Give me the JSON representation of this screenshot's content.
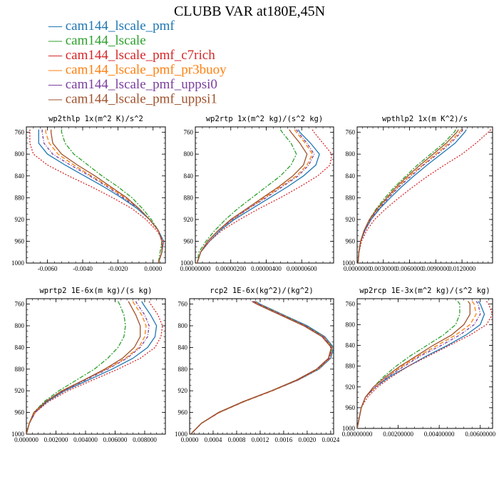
{
  "title": "CLUBB VAR at180E,45N",
  "series": [
    {
      "name": "cam144_lscale_pmf",
      "color": "#1f77b4",
      "dash": "",
      "legend_mark": "—"
    },
    {
      "name": "cam144_lscale",
      "color": "#2ca02c",
      "dash": "6 2 2 2",
      "legend_mark": "—"
    },
    {
      "name": "cam144_lscale_pmf_c7rich",
      "color": "#d62728",
      "dash": "2 2",
      "legend_mark": "—"
    },
    {
      "name": "cam144_lscale_pmf_pr3buoy",
      "color": "#ff7f0e",
      "dash": "6 3",
      "legend_mark": "—"
    },
    {
      "name": "cam144_lscale_pmf_uppsi0",
      "color": "#7b3f9e",
      "dash": "4 2 1 2",
      "legend_mark": "—"
    },
    {
      "name": "cam144_lscale_pmf_uppsi1",
      "color": "#a0522d",
      "dash": "",
      "legend_mark": "—"
    }
  ],
  "y_ticks": [
    "760",
    "800",
    "840",
    "880",
    "920",
    "960",
    "1000"
  ],
  "chart_data": [
    {
      "type": "line",
      "title": "wp2thlp  1x(m^2 K)/s^2",
      "xlim": [
        -0.0072,
        0.0007
      ],
      "ylim": [
        750,
        1000
      ],
      "y_inverted": true,
      "x_ticks": [
        -0.006,
        -0.004,
        -0.002,
        0.0
      ],
      "x_tick_labels": [
        "-0.0060",
        "-0.0040",
        "-0.0020",
        "0.0000"
      ],
      "y": [
        755,
        760,
        780,
        800,
        820,
        840,
        860,
        880,
        900,
        920,
        940,
        960,
        980,
        1000
      ],
      "series_x": [
        [
          -0.0065,
          -0.0065,
          -0.0065,
          -0.006,
          -0.005,
          -0.0039,
          -0.0028,
          -0.0018,
          -0.0009,
          -0.0002,
          0.0003,
          0.0006,
          0.0005,
          0.0003
        ],
        [
          -0.0052,
          -0.0052,
          -0.005,
          -0.0045,
          -0.0037,
          -0.0029,
          -0.002,
          -0.0012,
          -0.0006,
          -0.0001,
          0.0003,
          0.0005,
          0.0004,
          0.0003
        ],
        [
          -0.007,
          -0.007,
          -0.007,
          -0.0068,
          -0.006,
          -0.0048,
          -0.0035,
          -0.0023,
          -0.0012,
          -0.0004,
          0.0002,
          0.0006,
          0.0005,
          0.0003
        ],
        [
          -0.0061,
          -0.0061,
          -0.0059,
          -0.0054,
          -0.0045,
          -0.0035,
          -0.0025,
          -0.0016,
          -0.0008,
          -0.0002,
          0.0003,
          0.0005,
          0.0005,
          0.0003
        ],
        [
          -0.0063,
          -0.0063,
          -0.0062,
          -0.0057,
          -0.0047,
          -0.0036,
          -0.0026,
          -0.0017,
          -0.0008,
          -0.0002,
          0.0003,
          0.0005,
          0.0005,
          0.0003
        ],
        [
          -0.0058,
          -0.0058,
          -0.0057,
          -0.0052,
          -0.0043,
          -0.0033,
          -0.0024,
          -0.0015,
          -0.0008,
          -0.0002,
          0.0003,
          0.0005,
          0.0005,
          0.0003
        ]
      ]
    },
    {
      "type": "line",
      "title": "wp2rtp  1x(m^2 kg)/(s^2 kg)",
      "xlim": [
        0.0,
        7.8e-06
      ],
      "ylim": [
        750,
        1000
      ],
      "y_inverted": true,
      "x_ticks": [
        0.0,
        2e-06,
        4e-06,
        6e-06
      ],
      "x_tick_labels": [
        "0.00000000",
        "0.00000200",
        "0.00000400",
        "0.00000600"
      ],
      "y": [
        755,
        760,
        780,
        800,
        820,
        840,
        860,
        880,
        900,
        920,
        940,
        960,
        980,
        1000
      ],
      "series_x": [
        [
          5.8e-06,
          5.9e-06,
          6.5e-06,
          7e-06,
          6.8e-06,
          6.1e-06,
          5.2e-06,
          4.2e-06,
          3.2e-06,
          2.2e-06,
          1.4e-06,
          8e-07,
          3e-07,
          1e-07
        ],
        [
          4.8e-06,
          4.9e-06,
          5.4e-06,
          5.7e-06,
          5.4e-06,
          4.8e-06,
          4e-06,
          3.2e-06,
          2.4e-06,
          1.7e-06,
          1.1e-06,
          6e-07,
          2e-07,
          1e-07
        ],
        [
          6.6e-06,
          6.7e-06,
          7.2e-06,
          7.7e-06,
          7.6e-06,
          6.9e-06,
          5.9e-06,
          4.8e-06,
          3.6e-06,
          2.5e-06,
          1.5e-06,
          8e-07,
          3e-07,
          1e-07
        ],
        [
          5.6e-06,
          5.7e-06,
          6.2e-06,
          6.6e-06,
          6.3e-06,
          5.7e-06,
          4.8e-06,
          3.9e-06,
          3e-06,
          2.1e-06,
          1.3e-06,
          7e-07,
          3e-07,
          1e-07
        ],
        [
          5.7e-06,
          5.8e-06,
          6.3e-06,
          6.7e-06,
          6.4e-06,
          5.8e-06,
          4.9e-06,
          4e-06,
          3e-06,
          2.1e-06,
          1.3e-06,
          7e-07,
          3e-07,
          1e-07
        ],
        [
          5.3e-06,
          5.4e-06,
          5.9e-06,
          6.3e-06,
          6.1e-06,
          5.5e-06,
          4.7e-06,
          3.8e-06,
          2.9e-06,
          2e-06,
          1.3e-06,
          7e-07,
          3e-07,
          1e-07
        ]
      ]
    },
    {
      "type": "line",
      "title": "wpthlp2  1x(m K^2)/s",
      "xlim": [
        0.0,
        0.0155
      ],
      "ylim": [
        750,
        1000
      ],
      "y_inverted": true,
      "x_ticks": [
        0.0,
        0.003,
        0.006,
        0.009,
        0.012
      ],
      "x_tick_labels": [
        "0.0000000",
        "0.0030000",
        "0.0060000",
        "0.0090000",
        "0.0120000"
      ],
      "y": [
        755,
        760,
        780,
        800,
        820,
        840,
        860,
        880,
        900,
        920,
        940,
        960,
        980,
        1000
      ],
      "series_x": [
        [
          0.0125,
          0.0123,
          0.0112,
          0.0096,
          0.008,
          0.0065,
          0.0051,
          0.0038,
          0.0026,
          0.0016,
          0.0009,
          0.0004,
          0.0002,
          0.0001
        ],
        [
          0.0113,
          0.0111,
          0.0099,
          0.0084,
          0.0069,
          0.0056,
          0.0043,
          0.0032,
          0.0022,
          0.0014,
          0.0008,
          0.0004,
          0.0002,
          0.0001
        ],
        [
          0.0153,
          0.015,
          0.0136,
          0.012,
          0.01,
          0.0081,
          0.0064,
          0.0048,
          0.0033,
          0.002,
          0.0011,
          0.0005,
          0.0002,
          0.0001
        ],
        [
          0.0119,
          0.0117,
          0.0105,
          0.009,
          0.0075,
          0.006,
          0.0047,
          0.0035,
          0.0024,
          0.0015,
          0.0008,
          0.0004,
          0.0002,
          0.0001
        ],
        [
          0.0121,
          0.0119,
          0.0107,
          0.0092,
          0.0076,
          0.0062,
          0.0048,
          0.0036,
          0.0025,
          0.0015,
          0.0009,
          0.0004,
          0.0002,
          0.0001
        ],
        [
          0.0116,
          0.0114,
          0.0102,
          0.0087,
          0.0072,
          0.0058,
          0.0045,
          0.0034,
          0.0023,
          0.0014,
          0.0008,
          0.0004,
          0.0002,
          0.0001
        ]
      ]
    },
    {
      "type": "line",
      "title": "wprtp2  1E-6x(m kg)/(s kg)",
      "xlim": [
        0.0,
        0.0094
      ],
      "ylim": [
        750,
        1000
      ],
      "y_inverted": true,
      "x_ticks": [
        0.0,
        0.002,
        0.004,
        0.006,
        0.008
      ],
      "x_tick_labels": [
        "0.000000",
        "0.002000",
        "0.004000",
        "0.006000",
        "0.008000"
      ],
      "y": [
        755,
        760,
        780,
        800,
        820,
        840,
        860,
        880,
        900,
        920,
        940,
        960,
        980,
        1000
      ],
      "series_x": [
        [
          0.0078,
          0.0079,
          0.0084,
          0.0088,
          0.0087,
          0.0082,
          0.0072,
          0.0058,
          0.0042,
          0.0026,
          0.0014,
          0.0006,
          0.0002,
          0.0
        ],
        [
          0.0062,
          0.0063,
          0.0066,
          0.0067,
          0.0066,
          0.0062,
          0.0055,
          0.0046,
          0.0034,
          0.0022,
          0.0012,
          0.0005,
          0.0002,
          0.0
        ],
        [
          0.0083,
          0.0084,
          0.0089,
          0.0092,
          0.0091,
          0.0087,
          0.0077,
          0.0062,
          0.0045,
          0.0028,
          0.0015,
          0.0006,
          0.0002,
          0.0
        ],
        [
          0.0072,
          0.0073,
          0.0078,
          0.0081,
          0.008,
          0.0076,
          0.0067,
          0.0054,
          0.0039,
          0.0025,
          0.0013,
          0.0006,
          0.0002,
          0.0
        ],
        [
          0.0074,
          0.0075,
          0.008,
          0.0083,
          0.0082,
          0.0077,
          0.0068,
          0.0055,
          0.004,
          0.0025,
          0.0013,
          0.0006,
          0.0002,
          0.0
        ],
        [
          0.0069,
          0.007,
          0.0074,
          0.0077,
          0.0077,
          0.0073,
          0.0065,
          0.0053,
          0.0039,
          0.0024,
          0.0013,
          0.0005,
          0.0002,
          0.0
        ]
      ]
    },
    {
      "type": "line",
      "title": "rcp2  1E-6x(kg^2)/(kg^2)",
      "xlim": [
        0.0,
        0.00245
      ],
      "ylim": [
        750,
        1000
      ],
      "y_inverted": true,
      "x_ticks": [
        0.0,
        0.0004,
        0.0008,
        0.0012,
        0.0016,
        0.002,
        0.0024
      ],
      "x_tick_labels": [
        "0.0000",
        "0.0004",
        "0.0008",
        "0.0012",
        "0.0016",
        "0.0020",
        "0.0024"
      ],
      "y": [
        755,
        760,
        780,
        800,
        820,
        840,
        860,
        880,
        900,
        920,
        940,
        960,
        980,
        1000
      ],
      "series_x": [
        [
          0.00112,
          0.0012,
          0.0016,
          0.002,
          0.0023,
          0.00245,
          0.0024,
          0.0022,
          0.00185,
          0.0014,
          0.00092,
          0.0005,
          0.0002,
          2e-05
        ],
        [
          0.0011,
          0.00118,
          0.00158,
          0.00198,
          0.00228,
          0.00243,
          0.00238,
          0.00218,
          0.00184,
          0.0014,
          0.00092,
          0.0005,
          0.0002,
          2e-05
        ],
        [
          0.00108,
          0.00116,
          0.00156,
          0.00196,
          0.00227,
          0.00242,
          0.00237,
          0.00217,
          0.00183,
          0.00139,
          0.00091,
          0.0005,
          0.0002,
          2e-05
        ],
        [
          0.0011,
          0.00118,
          0.00158,
          0.00197,
          0.00228,
          0.00243,
          0.00239,
          0.00219,
          0.00185,
          0.00141,
          0.00093,
          0.00051,
          0.0002,
          2e-05
        ],
        [
          0.00109,
          0.00117,
          0.00157,
          0.00197,
          0.00227,
          0.00242,
          0.00238,
          0.00218,
          0.00184,
          0.0014,
          0.00092,
          0.0005,
          0.0002,
          2e-05
        ],
        [
          0.00106,
          0.00114,
          0.00154,
          0.00194,
          0.00225,
          0.00241,
          0.00236,
          0.00216,
          0.00182,
          0.00139,
          0.00091,
          0.00049,
          0.0002,
          2e-05
        ]
      ]
    },
    {
      "type": "line",
      "title": "wp2rcp  1E-3x(m^2 kg)/(s^2 kg)",
      "xlim": [
        0.0,
        0.0066
      ],
      "ylim": [
        750,
        1000
      ],
      "y_inverted": true,
      "x_ticks": [
        0.0,
        0.002,
        0.004,
        0.006
      ],
      "x_tick_labels": [
        "0.00000000",
        "0.00200000",
        "0.00400000",
        "0.00600000"
      ],
      "y": [
        755,
        760,
        780,
        800,
        820,
        840,
        860,
        880,
        900,
        920,
        940,
        960,
        980,
        1000
      ],
      "series_x": [
        [
          0.0059,
          0.006,
          0.0062,
          0.006,
          0.0053,
          0.0044,
          0.0034,
          0.0025,
          0.0016,
          0.0009,
          0.0004,
          0.0002,
          0.0001,
          0.0
        ],
        [
          0.0049,
          0.005,
          0.005,
          0.0048,
          0.0042,
          0.0034,
          0.0026,
          0.0019,
          0.0013,
          0.0008,
          0.0004,
          0.0002,
          0.0001,
          0.0
        ],
        [
          0.0063,
          0.0064,
          0.0066,
          0.0063,
          0.0055,
          0.0045,
          0.0035,
          0.0025,
          0.0017,
          0.001,
          0.0005,
          0.0002,
          0.0001,
          0.0
        ],
        [
          0.0056,
          0.0057,
          0.0058,
          0.0055,
          0.0048,
          0.0039,
          0.003,
          0.0022,
          0.0015,
          0.0009,
          0.0004,
          0.0002,
          0.0001,
          0.0
        ],
        [
          0.0058,
          0.0059,
          0.006,
          0.0057,
          0.005,
          0.0041,
          0.0031,
          0.0023,
          0.0015,
          0.0009,
          0.0004,
          0.0002,
          0.0001,
          0.0
        ],
        [
          0.0054,
          0.0055,
          0.0055,
          0.0052,
          0.0046,
          0.0037,
          0.0029,
          0.0021,
          0.0014,
          0.0008,
          0.0004,
          0.0002,
          0.0001,
          0.0
        ]
      ]
    }
  ]
}
